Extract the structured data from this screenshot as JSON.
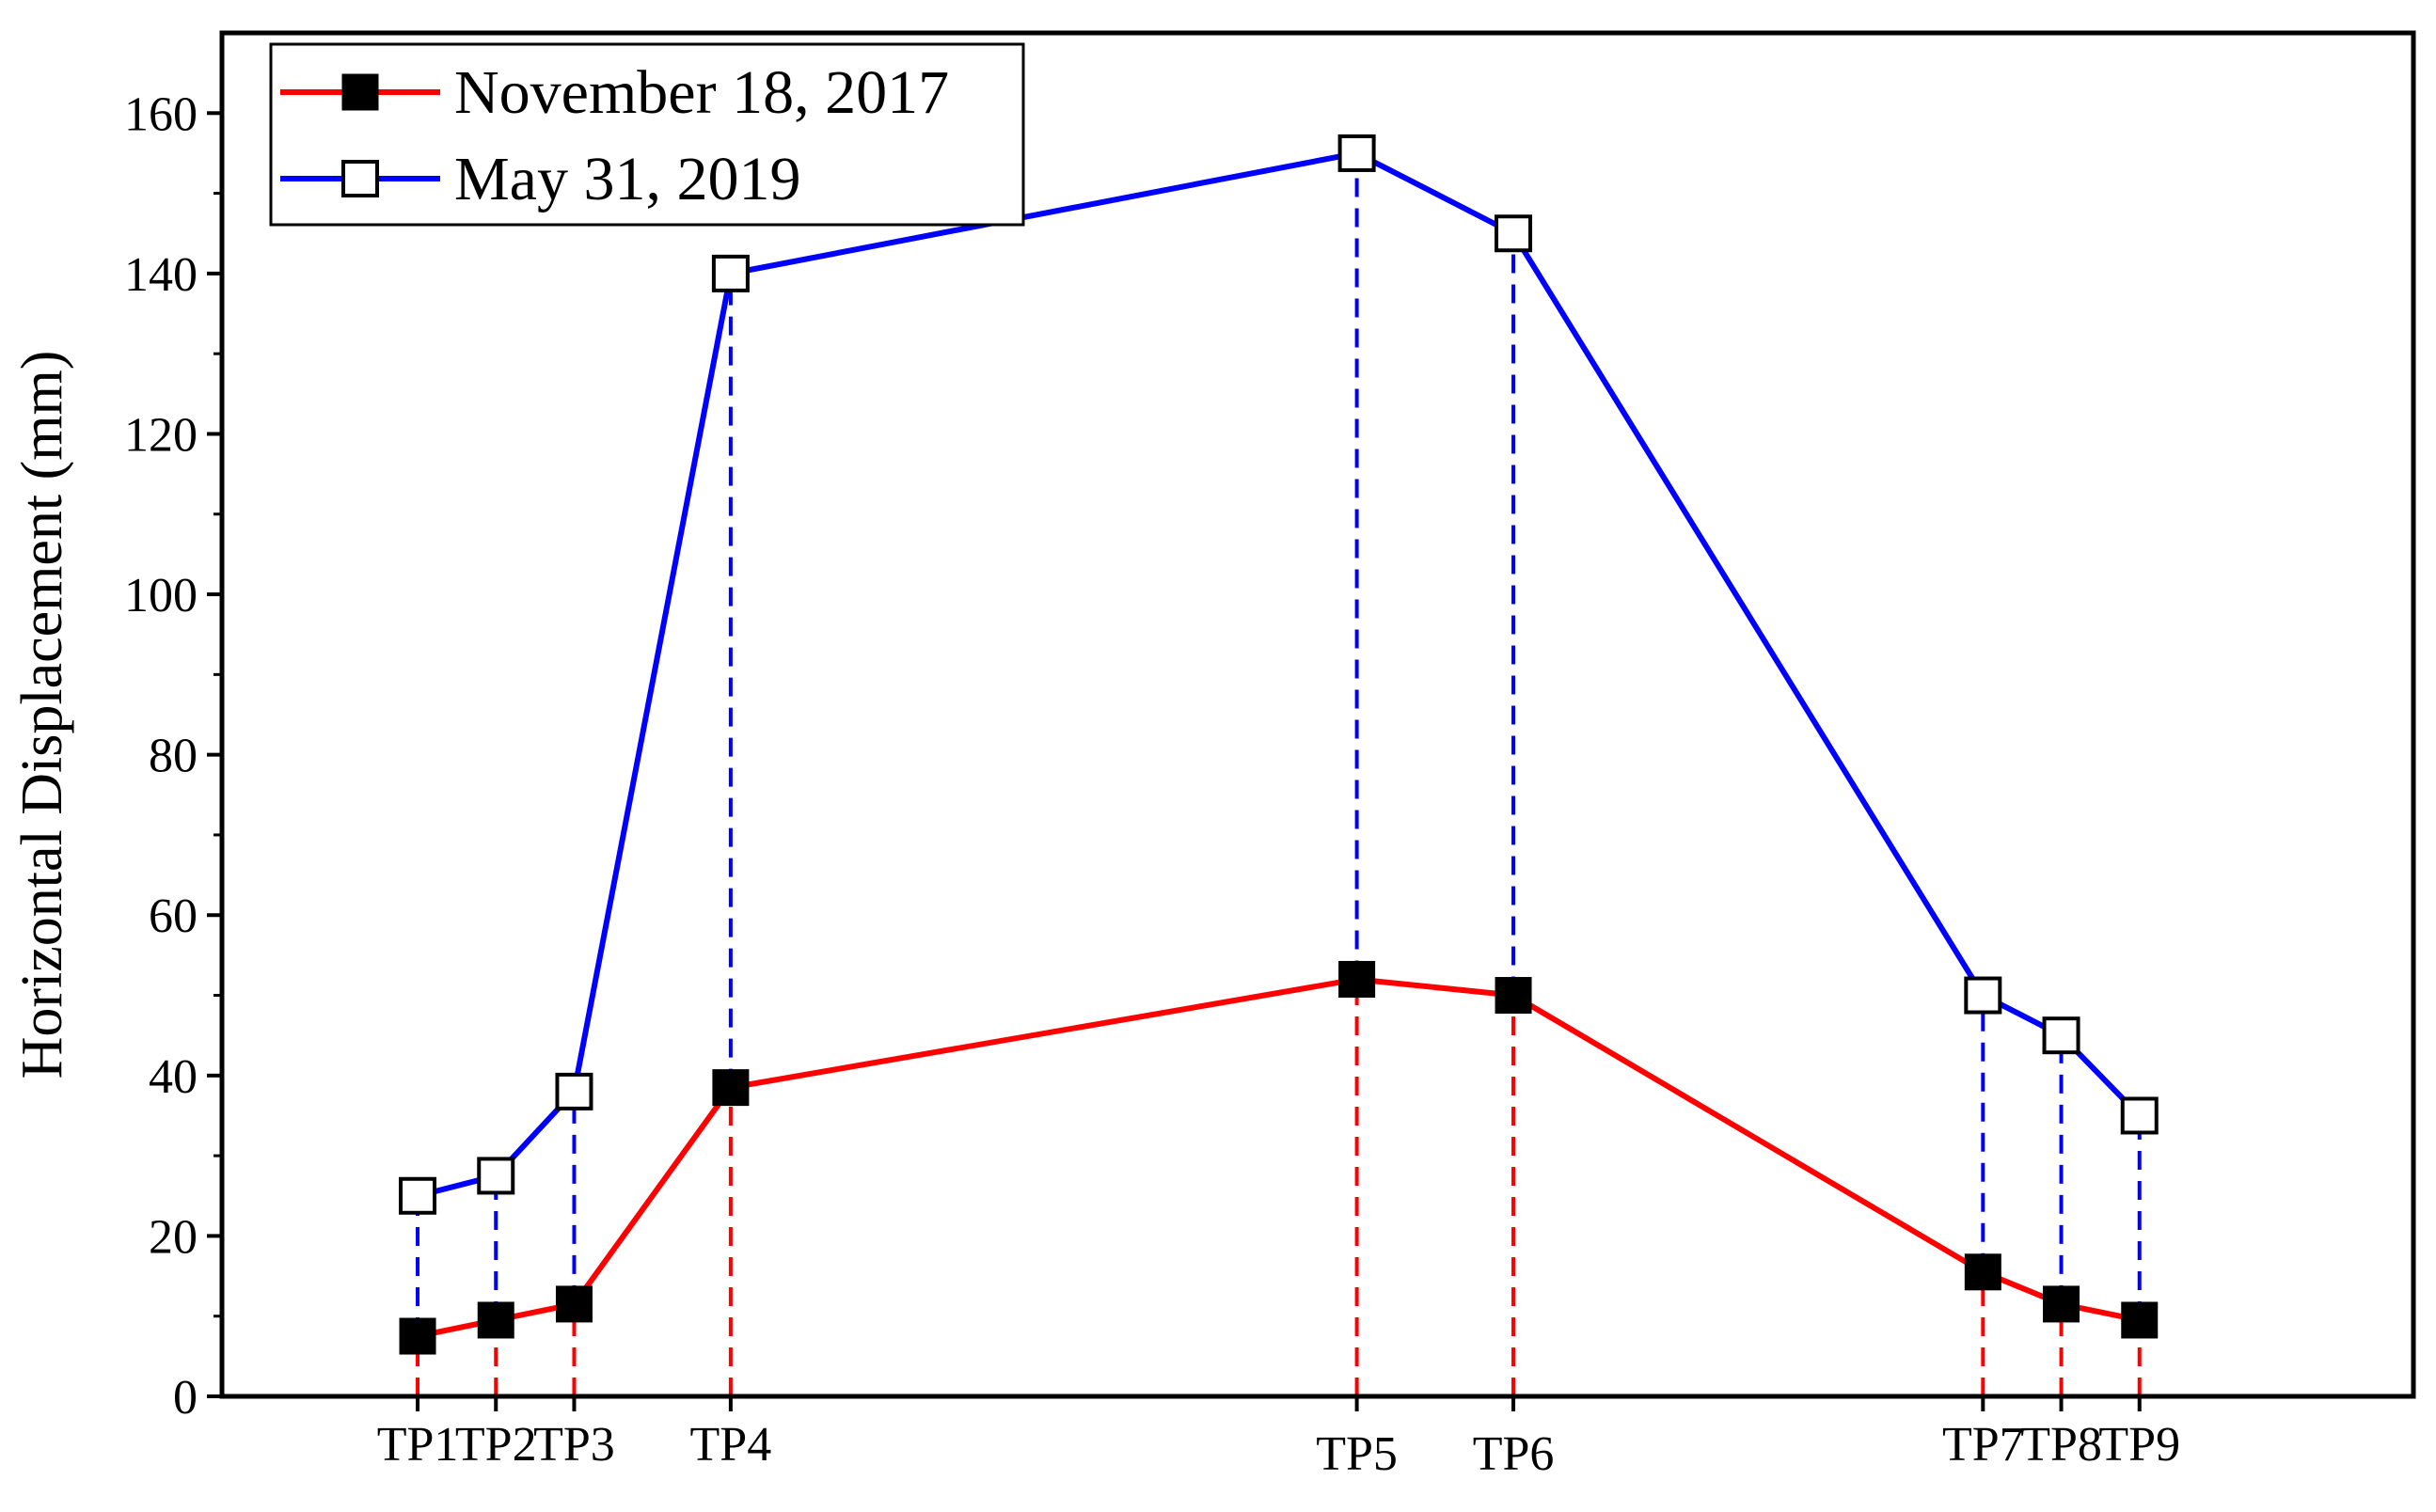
{
  "chart_data": {
    "type": "line",
    "ylabel": "Horizontal Displacement (mm)",
    "xlabel": "",
    "ylim": [
      0,
      170
    ],
    "yticks": [
      0,
      20,
      40,
      60,
      80,
      100,
      120,
      140,
      160
    ],
    "x_positions": [
      0.5,
      1,
      1.5,
      2.5,
      6.5,
      7.5,
      10.5,
      11,
      11.5
    ],
    "xlim": [
      -0.75,
      13.25
    ],
    "categories": [
      "TP1",
      "TP2",
      "TP3",
      "TP4",
      "TP5",
      "TP6",
      "TP7",
      "TP8",
      "TP9"
    ],
    "tick_labels": [
      "TP1",
      "TP2",
      "TP3",
      "TP4",
      "TP5",
      "TP6",
      "TP7",
      "TP8",
      "TP9"
    ],
    "series": [
      {
        "name": "November 18, 2017",
        "values": [
          7.5,
          9.5,
          11.5,
          38.5,
          52,
          50,
          15.5,
          11.5,
          9.5
        ],
        "color": "#ff0000",
        "marker": "filled-square"
      },
      {
        "name": "May 31, 2019",
        "values": [
          25,
          27.5,
          38,
          140,
          155,
          145,
          50,
          45,
          35
        ],
        "color": "#0000ff",
        "marker": "open-square"
      }
    ],
    "drop_lines": "dashed",
    "grid": false,
    "legend_position": "top-left"
  }
}
